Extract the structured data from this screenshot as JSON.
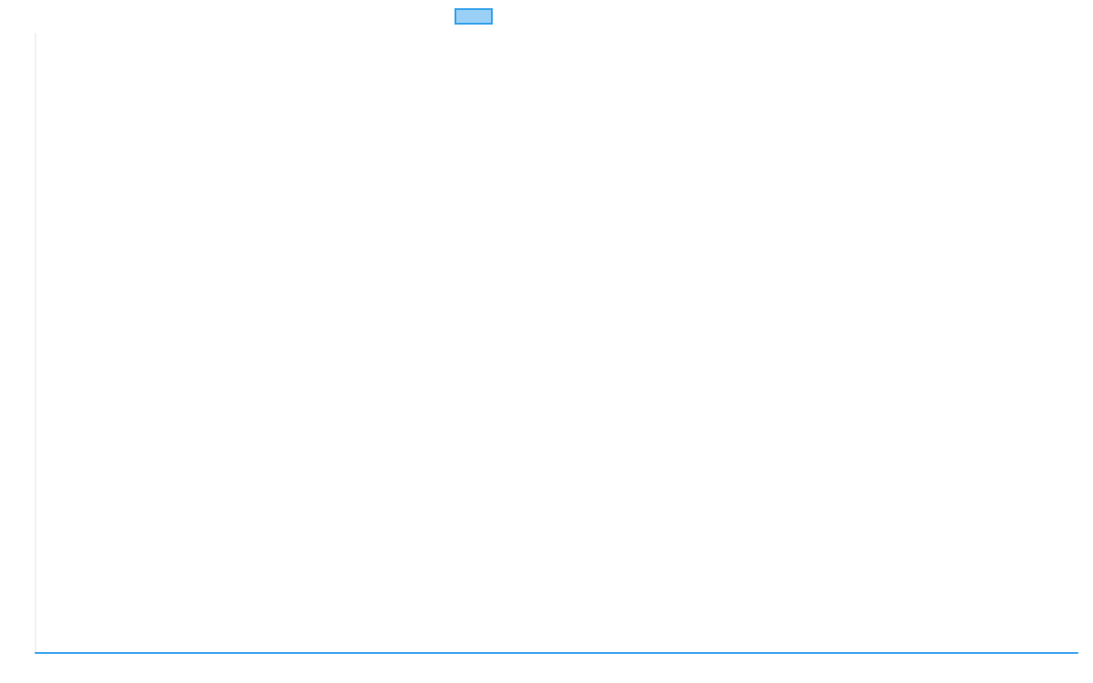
{
  "chart_data": {
    "type": "line",
    "title": "",
    "xlabel": "",
    "ylabel": "",
    "legend": {
      "placement": "top-center",
      "entries": [
        {
          "label": "",
          "color": "#36a2eb",
          "fill": "#9ad0f5"
        }
      ]
    },
    "grid": false,
    "xlim": [
      0,
      102
    ],
    "ylim": [
      0,
      5
    ],
    "series": [
      {
        "color": "#36a2eb",
        "x": [
          0,
          1,
          2,
          3,
          4,
          5,
          6,
          7,
          8,
          9,
          10,
          11,
          12,
          13,
          14,
          15,
          16,
          17,
          18,
          19,
          20,
          21,
          22,
          23,
          24,
          25,
          26,
          27,
          28,
          29,
          30,
          31,
          32,
          33,
          34,
          35,
          36,
          37,
          38,
          39,
          40,
          41,
          42,
          43,
          44,
          45,
          46,
          47,
          48,
          49,
          50,
          51,
          52,
          53,
          54,
          55,
          56,
          57,
          58,
          59,
          60,
          61,
          62,
          63,
          64,
          65,
          66,
          67,
          68,
          69,
          70,
          71,
          72,
          73,
          74,
          75,
          76,
          77,
          78,
          79,
          80,
          81,
          82,
          83,
          84,
          85,
          86,
          87,
          88,
          89,
          90,
          91,
          92,
          93,
          94,
          95,
          96,
          97,
          98,
          99,
          100,
          101,
          102
        ],
        "y": [
          0,
          0,
          0,
          0,
          0,
          0,
          0,
          0,
          0,
          0,
          0,
          0,
          0,
          0,
          0,
          0,
          0,
          0,
          0,
          0,
          0,
          0,
          0,
          0,
          0,
          0,
          0,
          0,
          0,
          0,
          0,
          0,
          0,
          0,
          0,
          0,
          0,
          0,
          0,
          0,
          0,
          0,
          0,
          0,
          0,
          0,
          0,
          0,
          0,
          0,
          0,
          0,
          0,
          0,
          0,
          0,
          0,
          0,
          0,
          0,
          0,
          0,
          0,
          0,
          0,
          0,
          0,
          0,
          0,
          0,
          0,
          0,
          0,
          0,
          0,
          0,
          0,
          0,
          0,
          0,
          0,
          0,
          0,
          0,
          0,
          0,
          0,
          0,
          0,
          0,
          0,
          0,
          0,
          0,
          0,
          0,
          0,
          0,
          0,
          0,
          0,
          0,
          0
        ]
      }
    ]
  }
}
